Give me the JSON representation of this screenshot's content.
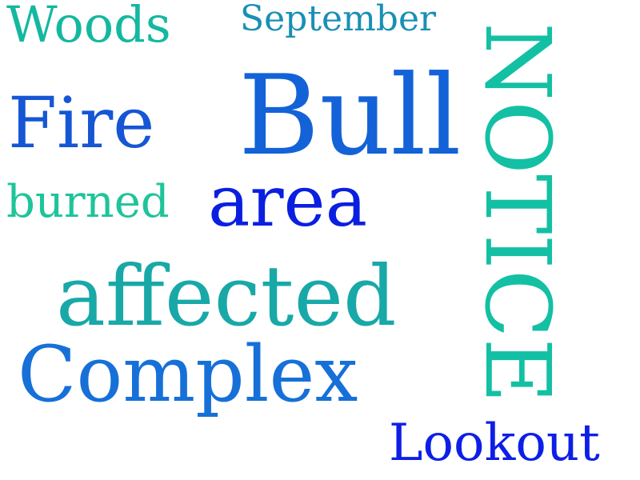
{
  "words": {
    "woods": "Woods",
    "september": "September",
    "fire": "Fire",
    "bull": "Bull",
    "burned": "burned",
    "area": "area",
    "affected": "affected",
    "complex": "Complex",
    "lookout": "Lookout",
    "notice": "NOTICE"
  },
  "colors": {
    "teal": "#14b8a0",
    "ocean": "#1a8fb5",
    "blue": "#1656d4",
    "royal": "#1362d8",
    "mint": "#1ec49a",
    "indigo": "#0b1fe0",
    "cyan": "#19a8a8",
    "sky": "#1670d8",
    "deep_blue": "#0d1fe6",
    "sea_green": "#13c0a3"
  }
}
